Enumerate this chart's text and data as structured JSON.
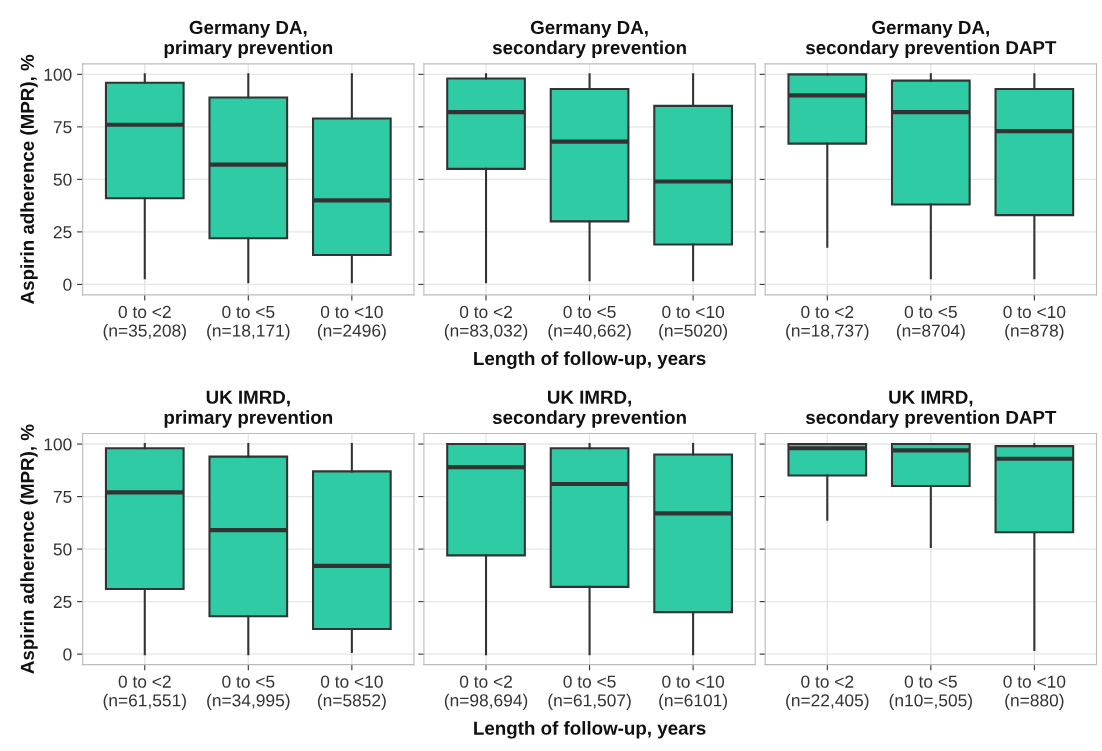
{
  "chart_data": [
    {
      "type": "box",
      "title": "Germany DA,\nprimary prevention",
      "ylabel": "Aspirin adherence (MPR), %",
      "categories": [
        "0 to <2\n(n=35,208)",
        "0 to <5\n(n=18,171)",
        "0 to <10\n(n=2496)"
      ],
      "color": "#2ecba5",
      "ylim": [
        -5,
        105
      ],
      "yticks": [
        0,
        25,
        50,
        75,
        100
      ],
      "grid": true,
      "boxes": [
        {
          "low": 3,
          "q1": 41,
          "median": 76,
          "q3": 96,
          "high": 100
        },
        {
          "low": 1,
          "q1": 22,
          "median": 57,
          "q3": 89,
          "high": 100
        },
        {
          "low": 1,
          "q1": 14,
          "median": 40,
          "q3": 79,
          "high": 100
        }
      ]
    },
    {
      "type": "box",
      "title": "Germany DA,\nsecondary prevention",
      "xlabel": "Length of follow-up, years",
      "categories": [
        "0 to <2\n(n=83,032)",
        "0 to <5\n(n=40,662)",
        "0 to <10\n(n=5020)"
      ],
      "color": "#2ecba5",
      "ylim": [
        -5,
        105
      ],
      "yticks": [
        0,
        25,
        50,
        75,
        100
      ],
      "grid": true,
      "tick_labels": "x",
      "boxes": [
        {
          "low": 1,
          "q1": 55,
          "median": 82,
          "q3": 98,
          "high": 100
        },
        {
          "low": 2,
          "q1": 30,
          "median": 68,
          "q3": 93,
          "high": 100
        },
        {
          "low": 2,
          "q1": 19,
          "median": 49,
          "q3": 85,
          "high": 100
        }
      ]
    },
    {
      "type": "box",
      "title": "Germany DA,\nsecondary prevention DAPT",
      "categories": [
        "0 to <2\n(n=18,737)",
        "0 to <5\n(n=8704)",
        "0 to <10\n(n=878)"
      ],
      "color": "#2ecba5",
      "ylim": [
        -5,
        105
      ],
      "yticks": [
        0,
        25,
        50,
        75,
        100
      ],
      "grid": true,
      "tick_labels": "x",
      "boxes": [
        {
          "low": 18,
          "q1": 67,
          "median": 90,
          "q3": 100,
          "high": 100
        },
        {
          "low": 3,
          "q1": 38,
          "median": 82,
          "q3": 97,
          "high": 100
        },
        {
          "low": 3,
          "q1": 33,
          "median": 73,
          "q3": 93,
          "high": 100
        }
      ]
    },
    {
      "type": "box",
      "title": "UK IMRD,\nprimary prevention",
      "ylabel": "Aspirin adherence (MPR), %",
      "categories": [
        "0 to <2\n(n=61,551)",
        "0 to <5\n(n=34,995)",
        "0 to <10\n(n=5852)"
      ],
      "color": "#2ecba5",
      "ylim": [
        -5,
        105
      ],
      "yticks": [
        0,
        25,
        50,
        75,
        100
      ],
      "grid": true,
      "boxes": [
        {
          "low": 0,
          "q1": 31,
          "median": 77,
          "q3": 98,
          "high": 100
        },
        {
          "low": 0,
          "q1": 18,
          "median": 59,
          "q3": 94,
          "high": 100
        },
        {
          "low": 1,
          "q1": 12,
          "median": 42,
          "q3": 87,
          "high": 100
        }
      ]
    },
    {
      "type": "box",
      "title": "UK IMRD,\nsecondary prevention",
      "xlabel": "Length of follow-up, years",
      "categories": [
        "0 to <2\n(n=98,694)",
        "0 to <5\n(n=61,507)",
        "0 to <10\n(n=6101)"
      ],
      "color": "#2ecba5",
      "ylim": [
        -5,
        105
      ],
      "yticks": [
        0,
        25,
        50,
        75,
        100
      ],
      "grid": true,
      "tick_labels": "x",
      "boxes": [
        {
          "low": 0,
          "q1": 47,
          "median": 89,
          "q3": 100,
          "high": 100
        },
        {
          "low": 0,
          "q1": 32,
          "median": 81,
          "q3": 98,
          "high": 100
        },
        {
          "low": 0,
          "q1": 20,
          "median": 67,
          "q3": 95,
          "high": 100
        }
      ]
    },
    {
      "type": "box",
      "title": "UK IMRD,\nsecondary prevention DAPT",
      "categories": [
        "0 to <2\n(n=22,405)",
        "0 to <5\n(n10=,505)",
        "0 to <10\n(n=880)"
      ],
      "color": "#2ecba5",
      "ylim": [
        -5,
        105
      ],
      "yticks": [
        0,
        25,
        50,
        75,
        100
      ],
      "grid": true,
      "tick_labels": "x",
      "boxes": [
        {
          "low": 64,
          "q1": 85,
          "median": 98,
          "q3": 100,
          "high": 100
        },
        {
          "low": 51,
          "q1": 80,
          "median": 97,
          "q3": 100,
          "high": 100
        },
        {
          "low": 2,
          "q1": 58,
          "median": 93,
          "q3": 99,
          "high": 100
        }
      ]
    }
  ]
}
